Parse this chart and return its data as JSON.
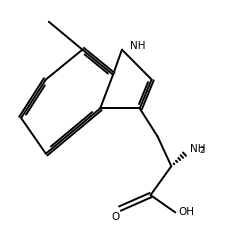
{
  "bg_color": "#ffffff",
  "line_color": "#000000",
  "bond_width": 1.4,
  "fig_width": 2.32,
  "fig_height": 2.38,
  "dpi": 100,
  "font_size": 7.5,
  "xlim": [
    -0.5,
    9.5
  ],
  "ylim": [
    -0.5,
    9.5
  ],
  "nh_label": "NH",
  "nh2_label": "NH",
  "nh2_sub": "2",
  "oh_label": "OH",
  "o_label": "O"
}
